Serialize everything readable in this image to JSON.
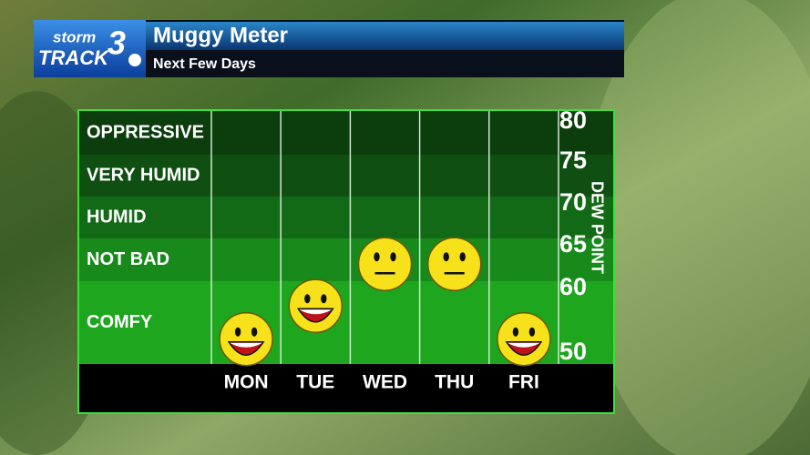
{
  "header": {
    "logo_top": "storm",
    "logo_bottom": "TRACK",
    "logo_number": "3",
    "title": "Muggy Meter",
    "subtitle": "Next Few Days"
  },
  "chart_data": {
    "type": "meter",
    "categories": [
      "MON",
      "TUE",
      "WED",
      "THU",
      "FRI"
    ],
    "series": [
      {
        "name": "Dew point",
        "values": [
          53,
          57,
          62,
          62,
          53
        ]
      }
    ],
    "ylabel": "DEW POINT",
    "ylim": [
      50,
      80
    ],
    "yticks": [
      80,
      75,
      70,
      65,
      60,
      50
    ],
    "bands": [
      {
        "label": "OPPRESSIVE",
        "from": 75,
        "to": 80,
        "color": "#0b3d0d"
      },
      {
        "label": "VERY HUMID",
        "from": 70,
        "to": 75,
        "color": "#0f4f12"
      },
      {
        "label": "HUMID",
        "from": 65,
        "to": 70,
        "color": "#136a16"
      },
      {
        "label": "NOT BAD",
        "from": 60,
        "to": 65,
        "color": "#18891b"
      },
      {
        "label": "COMFY",
        "from": 50,
        "to": 60,
        "color": "#1ea61f"
      }
    ]
  }
}
